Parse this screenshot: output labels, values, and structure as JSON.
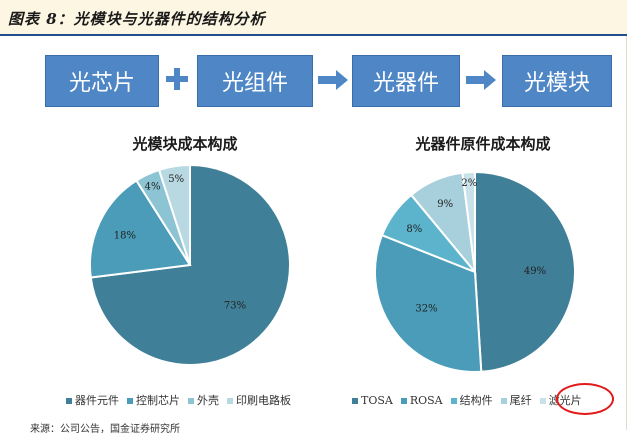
{
  "figure": {
    "title": "图表 8：光模块与光器件的结构分析",
    "source": "来源：公司公告，国金证券研究所"
  },
  "flow": {
    "steps": [
      "光芯片",
      "光组件",
      "光器件",
      "光模块"
    ],
    "connectors": [
      "plus-icon",
      "arrow-icon",
      "arrow-icon"
    ],
    "box_color": "#4f86c6"
  },
  "chart_data": [
    {
      "type": "pie",
      "title": "光模块成本构成",
      "categories": [
        "器件元件",
        "控制芯片",
        "外壳",
        "印刷电路板"
      ],
      "values": [
        73,
        18,
        4,
        5
      ],
      "labels": [
        "73%",
        "18%",
        "4%",
        "5%"
      ],
      "colors": [
        "#3f7f98",
        "#4a9cb8",
        "#8cc4d4",
        "#b8d8e2"
      ],
      "legend_position": "bottom"
    },
    {
      "type": "pie",
      "title": "光器件原件成本构成",
      "categories": [
        "TOSA",
        "ROSA",
        "结构件",
        "尾纤",
        "滤光片"
      ],
      "values": [
        49,
        32,
        8,
        9,
        2
      ],
      "labels": [
        "49%",
        "32%",
        "8%",
        "9%",
        "2%"
      ],
      "colors": [
        "#3f7f98",
        "#4a9cb8",
        "#5bb4cc",
        "#a7cfdc",
        "#c9e1e8"
      ],
      "legend_position": "bottom",
      "highlighted": "滤光片"
    }
  ]
}
